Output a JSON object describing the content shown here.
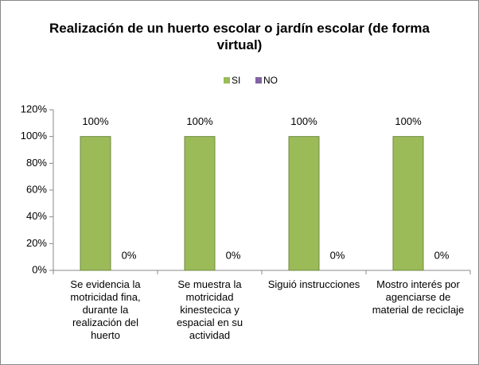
{
  "chart_data": {
    "type": "bar",
    "title": "Realización de un huerto escolar o jardín escolar (de forma virtual)",
    "categories": [
      "Se evidencia la motricidad fina, durante la realización del huerto",
      "Se muestra la motricidad kinestecica y espacial en su actividad",
      "Siguió instrucciones",
      "Mostro interés por agenciarse de material de reciclaje"
    ],
    "series": [
      {
        "name": "SI",
        "color": "#9bbb59",
        "values": [
          100,
          100,
          100,
          100
        ],
        "value_labels": [
          "100%",
          "100%",
          "100%",
          "100%"
        ]
      },
      {
        "name": "NO",
        "color": "#8064a2",
        "values": [
          0,
          0,
          0,
          0
        ],
        "value_labels": [
          "0%",
          "0%",
          "0%",
          "0%"
        ]
      }
    ],
    "ylim": [
      0,
      120
    ],
    "yticks": [
      {
        "value": 0,
        "label": "0%"
      },
      {
        "value": 20,
        "label": "20%"
      },
      {
        "value": 40,
        "label": "40%"
      },
      {
        "value": 60,
        "label": "60%"
      },
      {
        "value": 80,
        "label": "80%"
      },
      {
        "value": 100,
        "label": "100%"
      },
      {
        "value": 120,
        "label": "120%"
      }
    ],
    "legend": "top"
  }
}
